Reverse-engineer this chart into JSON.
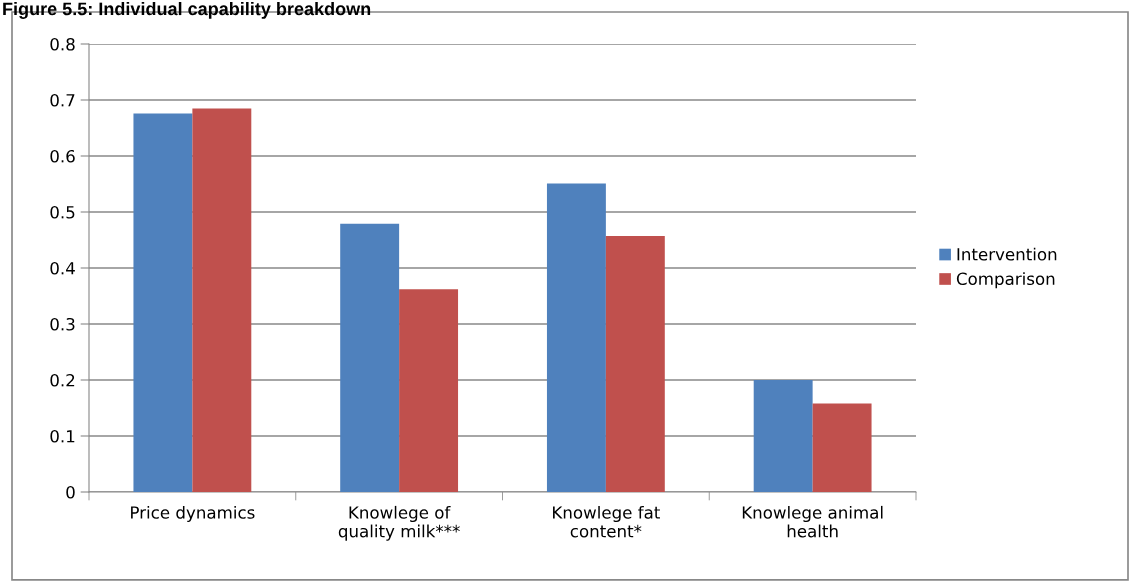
{
  "chart_data": {
    "type": "bar",
    "title": "Figure 5.5: Individual capability breakdown",
    "categories": [
      "Price dynamics",
      "Knowlege of\nquality milk***",
      "Knowlege fat\ncontent*",
      "Knowlege animal\nhealth"
    ],
    "series": [
      {
        "name": "Intervention",
        "color": "#4f81bd",
        "values": [
          0.676,
          0.479,
          0.551,
          0.2
        ]
      },
      {
        "name": "Comparison",
        "color": "#c0504d",
        "values": [
          0.685,
          0.362,
          0.457,
          0.158
        ]
      }
    ],
    "ylim": [
      0,
      0.8
    ],
    "yticks": [
      {
        "value": 0,
        "label": "0"
      },
      0.1,
      0.2,
      0.3,
      0.4,
      0.5,
      0.6,
      0.7,
      0.8
    ],
    "grid": "y",
    "legend": "right"
  }
}
